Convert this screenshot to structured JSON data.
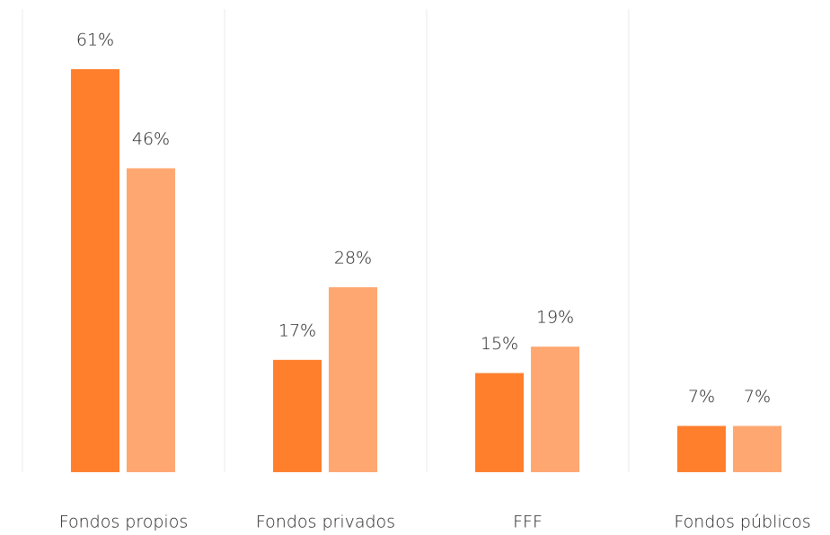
{
  "chart_data": {
    "type": "bar",
    "categories": [
      "Fondos propios",
      "Fondos privados",
      "FFF",
      "Fondos públicos"
    ],
    "series": [
      {
        "color": "#ff7f2d",
        "values": [
          61,
          17,
          15,
          7
        ],
        "value_labels": [
          "61%",
          "17%",
          "15%",
          "7%"
        ]
      },
      {
        "color": "#ffa771",
        "values": [
          46,
          28,
          19,
          7
        ],
        "value_labels": [
          "46%",
          "28%",
          "19%",
          "7%"
        ]
      }
    ]
  }
}
